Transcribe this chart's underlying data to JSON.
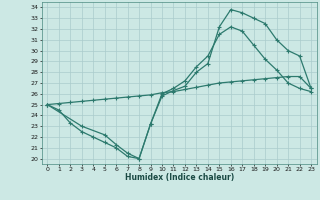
{
  "xlabel": "Humidex (Indice chaleur)",
  "bg_color": "#cce8e4",
  "grid_color": "#aacccc",
  "line_color": "#2d7a6e",
  "xlim": [
    -0.5,
    23.5
  ],
  "ylim": [
    19.5,
    34.5
  ],
  "xticks": [
    0,
    1,
    2,
    3,
    4,
    5,
    6,
    7,
    8,
    9,
    10,
    11,
    12,
    13,
    14,
    15,
    16,
    17,
    18,
    19,
    20,
    21,
    22,
    23
  ],
  "yticks": [
    20,
    21,
    22,
    23,
    24,
    25,
    26,
    27,
    28,
    29,
    30,
    31,
    32,
    33,
    34
  ],
  "line1_x": [
    0,
    1,
    2,
    3,
    4,
    5,
    6,
    7,
    8,
    9,
    10,
    11,
    12,
    13,
    14,
    15,
    16,
    17,
    18,
    19,
    20,
    21,
    22,
    23
  ],
  "line1_y": [
    25.0,
    24.5,
    23.3,
    22.5,
    22.0,
    21.5,
    21.0,
    20.2,
    20.0,
    23.2,
    26.0,
    26.5,
    27.2,
    28.5,
    29.5,
    31.5,
    32.2,
    31.8,
    30.5,
    29.2,
    28.2,
    27.0,
    26.5,
    26.2
  ],
  "line2_x": [
    0,
    3,
    5,
    6,
    7,
    8,
    9,
    10,
    11,
    12,
    13,
    14,
    15,
    16,
    17,
    18,
    19,
    20,
    21,
    22,
    23
  ],
  "line2_y": [
    25.0,
    23.0,
    22.2,
    21.3,
    20.5,
    20.0,
    23.2,
    25.8,
    26.3,
    26.7,
    28.0,
    28.8,
    32.2,
    33.8,
    33.5,
    33.0,
    32.5,
    31.0,
    30.0,
    29.5,
    26.5
  ],
  "line3_x": [
    0,
    1,
    2,
    3,
    4,
    5,
    6,
    7,
    8,
    9,
    10,
    11,
    12,
    13,
    14,
    15,
    16,
    17,
    18,
    19,
    20,
    21,
    22,
    23
  ],
  "line3_y": [
    25.0,
    25.1,
    25.2,
    25.3,
    25.4,
    25.5,
    25.6,
    25.7,
    25.8,
    25.9,
    26.1,
    26.2,
    26.4,
    26.6,
    26.8,
    27.0,
    27.1,
    27.2,
    27.3,
    27.4,
    27.5,
    27.6,
    27.6,
    26.5
  ]
}
